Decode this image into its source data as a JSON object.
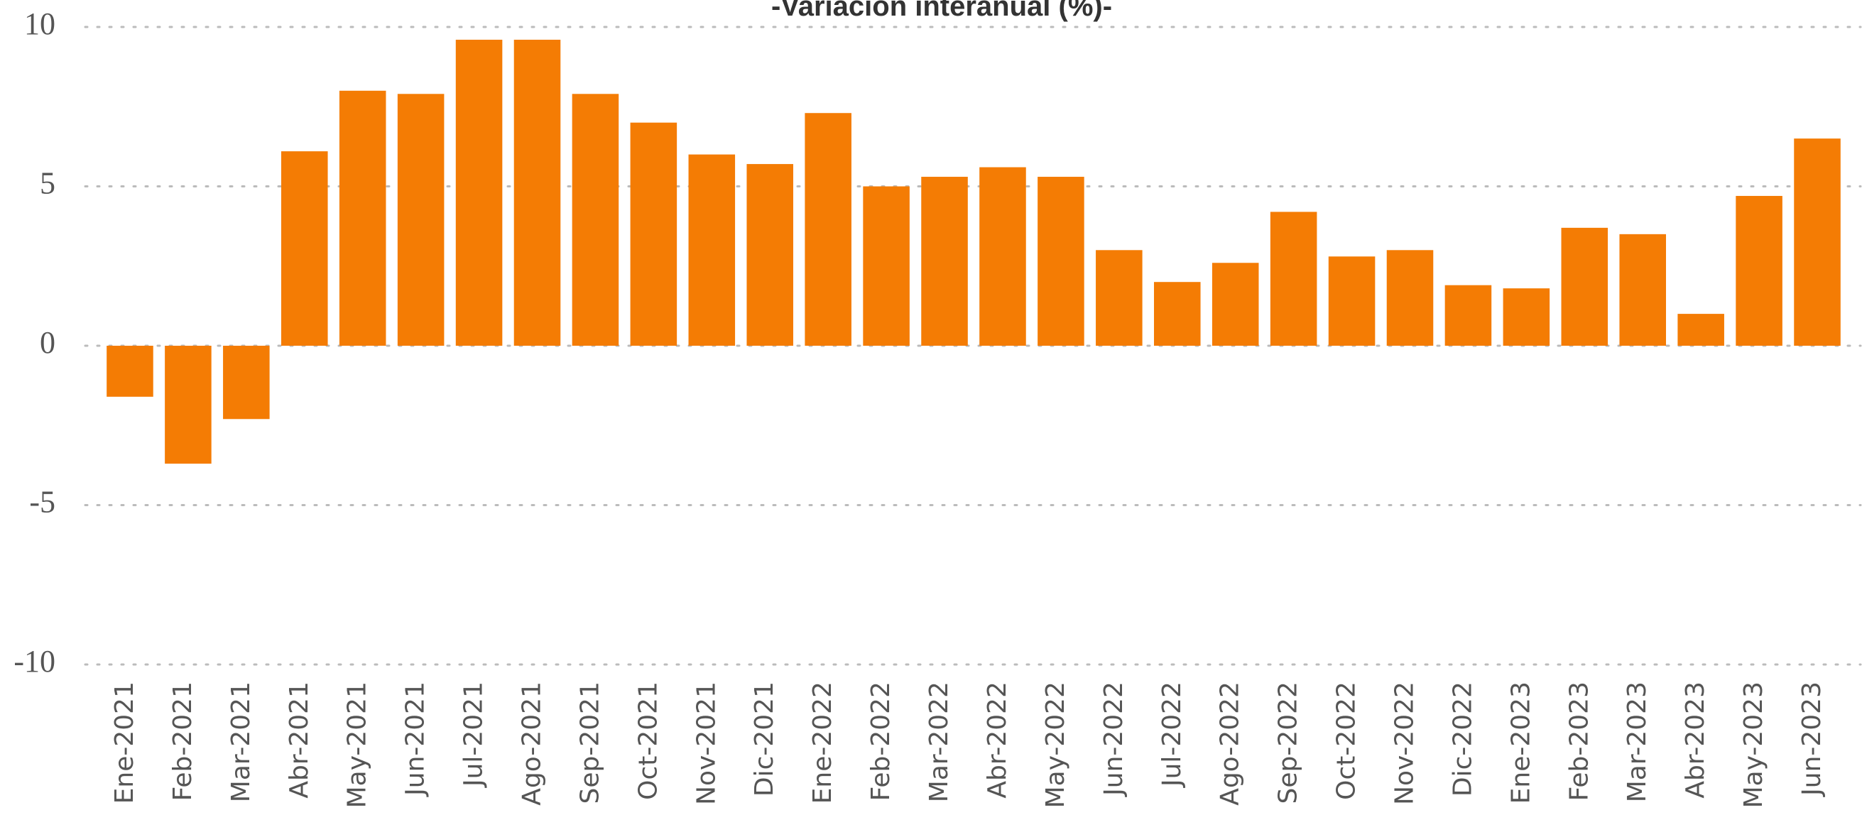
{
  "chart_data": {
    "type": "bar",
    "title": "-Variación interanual (%)-",
    "categories": [
      "Ene-2021",
      "Feb-2021",
      "Mar-2021",
      "Abr-2021",
      "May-2021",
      "Jun-2021",
      "Jul-2021",
      "Ago-2021",
      "Sep-2021",
      "Oct-2021",
      "Nov-2021",
      "Dic-2021",
      "Ene-2022",
      "Feb-2022",
      "Mar-2022",
      "Abr-2022",
      "May-2022",
      "Jun-2022",
      "Jul-2022",
      "Ago-2022",
      "Sep-2022",
      "Oct-2022",
      "Nov-2022",
      "Dic-2022",
      "Ene-2023",
      "Feb-2023",
      "Mar-2023",
      "Abr-2023",
      "May-2023",
      "Jun-2023"
    ],
    "values": [
      -1.6,
      -3.7,
      -2.3,
      6.1,
      8.0,
      7.9,
      9.6,
      9.6,
      7.9,
      7.0,
      6.0,
      5.7,
      7.3,
      5.0,
      5.3,
      5.6,
      5.3,
      3.0,
      2.0,
      2.6,
      4.2,
      2.8,
      3.0,
      1.9,
      1.8,
      3.7,
      3.5,
      1.0,
      4.7,
      6.5
    ],
    "color": "#f47c04",
    "ylim": [
      -10,
      10
    ],
    "yticks": [
      -10,
      -5,
      0,
      5,
      10
    ],
    "grid": true
  }
}
